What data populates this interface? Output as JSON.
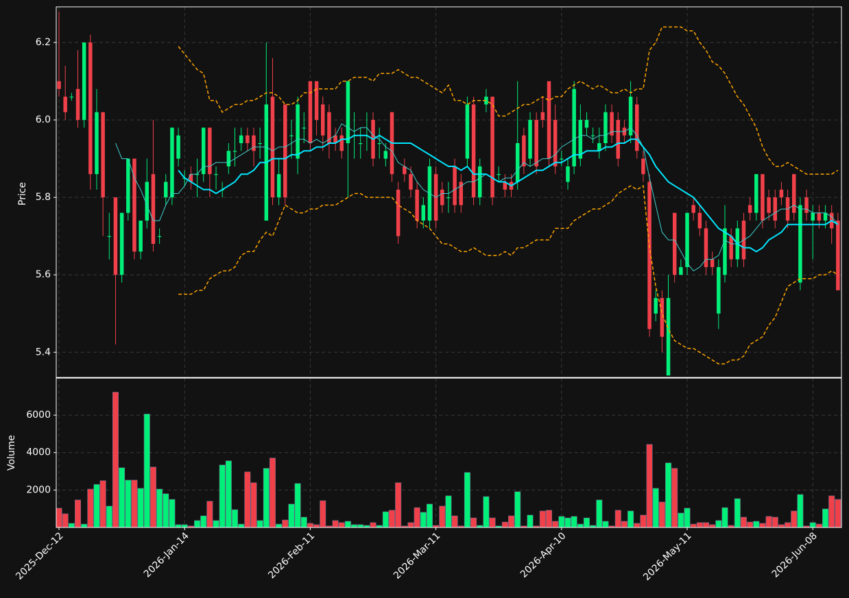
{
  "chart_data": {
    "type": "candlestick",
    "ylabel": "Price",
    "grid": true,
    "up_color": "#00f07a",
    "down_color": "#f0404a",
    "xlim": [
      -0.44,
      124.56
    ],
    "ylim": [
      5.335,
      6.292
    ],
    "yticks": [
      5.4,
      5.6,
      5.8,
      {
        "value": 6,
        "label": "6.0"
      },
      6.2
    ],
    "categories": [
      "2025-Dec-12",
      null,
      null,
      null,
      null,
      null,
      null,
      null,
      null,
      null,
      null,
      null,
      null,
      null,
      null,
      null,
      null,
      null,
      null,
      null,
      "2026-Jan-14",
      null,
      null,
      null,
      null,
      null,
      null,
      null,
      null,
      null,
      null,
      null,
      null,
      null,
      null,
      null,
      null,
      null,
      null,
      null,
      "2026-Feb-11",
      null,
      null,
      null,
      null,
      null,
      null,
      null,
      null,
      null,
      null,
      null,
      null,
      null,
      null,
      null,
      null,
      null,
      null,
      null,
      "2026-Mar-11",
      null,
      null,
      null,
      null,
      null,
      null,
      null,
      null,
      null,
      null,
      null,
      null,
      null,
      null,
      null,
      null,
      null,
      null,
      null,
      "2026-Apr-10",
      null,
      null,
      null,
      null,
      null,
      null,
      null,
      null,
      null,
      null,
      null,
      null,
      null,
      null,
      null,
      null,
      null,
      null,
      null,
      "2026-May-11",
      null,
      null,
      null,
      null,
      null,
      null,
      null,
      null,
      null,
      null,
      null,
      null,
      null,
      null,
      null,
      null,
      null,
      null,
      null,
      "2026-Jun-08",
      null,
      null,
      null,
      null
    ],
    "open": [
      6.1,
      6.06,
      6.06,
      6.08,
      6.0,
      6.2,
      5.86,
      6.02,
      5.7,
      5.8,
      5.6,
      5.76,
      5.9,
      5.66,
      5.74,
      5.86,
      5.7,
      5.8,
      5.8,
      5.9,
      5.85,
      5.86,
      5.86,
      5.86,
      5.98,
      5.86,
      5.82,
      5.88,
      5.92,
      5.94,
      5.96,
      5.96,
      5.94,
      5.74,
      6.06,
      5.8,
      6.04,
      5.96,
      5.9,
      5.98,
      6.1,
      6.1,
      6.04,
      6.02,
      5.96,
      5.96,
      5.94,
      5.96,
      5.94,
      5.96,
      6.0,
      5.94,
      5.9,
      6.02,
      5.82,
      5.88,
      5.86,
      5.82,
      5.74,
      5.74,
      5.86,
      5.82,
      5.8,
      5.88,
      5.84,
      5.9,
      6.04,
      5.8,
      6.04,
      6.06,
      5.86,
      5.84,
      5.84,
      5.84,
      5.96,
      5.9,
      6.0,
      6.02,
      6.1,
      6.0,
      5.9,
      5.84,
      5.88,
      5.9,
      5.98,
      5.96,
      5.92,
      5.94,
      6.02,
      6.0,
      5.98,
      5.96,
      6.04,
      5.9,
      5.84,
      5.5,
      5.54,
      5.34,
      5.76,
      5.6,
      5.62,
      5.78,
      5.76,
      5.72,
      5.64,
      5.5,
      5.6,
      5.7,
      5.64,
      5.74,
      5.78,
      5.76,
      5.86,
      5.8,
      5.8,
      5.82,
      5.8,
      5.86,
      5.58,
      5.8,
      5.74,
      5.76,
      5.74,
      5.76,
      5.74
    ],
    "high": [
      6.28,
      6.14,
      6.07,
      6.18,
      6.2,
      6.22,
      6.08,
      6.02,
      5.76,
      5.8,
      5.76,
      5.9,
      5.9,
      5.74,
      5.9,
      6.0,
      5.72,
      5.86,
      5.98,
      5.98,
      5.87,
      5.88,
      5.9,
      5.98,
      5.98,
      5.88,
      5.84,
      5.94,
      5.98,
      5.98,
      5.98,
      5.98,
      5.98,
      6.2,
      6.16,
      5.9,
      6.04,
      6.0,
      6.06,
      6.02,
      6.1,
      6.1,
      6.06,
      6.04,
      5.98,
      5.98,
      6.1,
      6.02,
      5.98,
      6.02,
      6.02,
      5.98,
      5.94,
      6.02,
      5.84,
      5.9,
      5.88,
      5.84,
      5.8,
      5.9,
      5.88,
      5.84,
      5.84,
      5.9,
      5.86,
      6.06,
      6.06,
      5.9,
      6.08,
      6.06,
      5.88,
      5.86,
      5.86,
      6.1,
      5.98,
      6.02,
      6.02,
      6.06,
      6.1,
      6.04,
      5.92,
      5.9,
      6.1,
      6.04,
      6.02,
      5.98,
      5.98,
      6.04,
      6.04,
      6.02,
      6.0,
      6.1,
      6.06,
      5.92,
      5.86,
      5.56,
      5.56,
      5.6,
      5.76,
      5.64,
      5.76,
      5.8,
      5.78,
      5.74,
      5.66,
      5.64,
      5.78,
      5.72,
      5.74,
      5.76,
      5.8,
      5.86,
      5.86,
      5.82,
      5.82,
      5.84,
      5.82,
      5.86,
      5.8,
      5.82,
      5.78,
      5.78,
      5.78,
      5.78,
      5.76
    ],
    "low": [
      6.06,
      6.0,
      6.05,
      5.98,
      5.98,
      5.82,
      5.82,
      5.7,
      5.64,
      5.42,
      5.58,
      5.74,
      5.64,
      5.64,
      5.72,
      5.66,
      5.68,
      5.78,
      5.78,
      5.88,
      5.83,
      5.82,
      5.8,
      5.84,
      5.8,
      5.82,
      5.8,
      5.86,
      5.88,
      5.92,
      5.92,
      5.88,
      5.9,
      5.74,
      5.78,
      5.78,
      5.78,
      5.9,
      5.86,
      5.94,
      5.92,
      5.96,
      5.92,
      5.9,
      5.92,
      5.9,
      5.8,
      5.9,
      5.9,
      5.92,
      5.88,
      5.9,
      5.88,
      5.84,
      5.68,
      5.84,
      5.8,
      5.72,
      5.72,
      5.72,
      5.72,
      5.76,
      5.76,
      5.76,
      5.76,
      5.88,
      5.78,
      5.78,
      6.02,
      5.78,
      5.84,
      5.8,
      5.8,
      5.82,
      5.86,
      5.88,
      5.86,
      5.98,
      5.88,
      5.86,
      5.88,
      5.82,
      5.86,
      5.88,
      5.96,
      5.94,
      5.9,
      5.92,
      5.94,
      5.88,
      5.94,
      5.94,
      5.9,
      5.84,
      5.44,
      5.48,
      5.4,
      5.34,
      5.58,
      5.6,
      5.6,
      5.74,
      5.7,
      5.6,
      5.6,
      5.46,
      5.58,
      5.62,
      5.62,
      5.62,
      5.74,
      5.74,
      5.72,
      5.74,
      5.72,
      5.78,
      5.72,
      5.74,
      5.56,
      5.74,
      5.64,
      5.72,
      5.72,
      5.68,
      5.56
    ],
    "close": [
      6.08,
      6.02,
      6.06,
      6.0,
      6.2,
      5.86,
      6.02,
      5.8,
      5.7,
      5.6,
      5.76,
      5.9,
      5.66,
      5.74,
      5.84,
      5.68,
      5.7,
      5.84,
      5.98,
      5.96,
      5.85,
      5.84,
      5.86,
      5.98,
      5.86,
      5.86,
      5.82,
      5.92,
      5.92,
      5.96,
      5.94,
      5.92,
      5.94,
      6.04,
      5.8,
      5.86,
      5.8,
      5.96,
      6.04,
      5.98,
      5.94,
      6.0,
      5.96,
      5.94,
      5.94,
      5.92,
      6.1,
      5.96,
      5.94,
      5.96,
      5.9,
      5.94,
      5.92,
      5.86,
      5.7,
      5.86,
      5.82,
      5.74,
      5.78,
      5.88,
      5.74,
      5.78,
      5.8,
      5.78,
      5.78,
      6.04,
      5.8,
      5.88,
      6.06,
      5.8,
      5.86,
      5.82,
      5.82,
      5.94,
      5.88,
      6.0,
      5.88,
      6.0,
      5.9,
      5.88,
      5.9,
      5.88,
      6.08,
      6.0,
      6.0,
      5.96,
      5.94,
      6.02,
      5.96,
      5.9,
      5.96,
      6.06,
      5.92,
      5.86,
      5.46,
      5.54,
      5.44,
      5.54,
      5.6,
      5.62,
      5.76,
      5.76,
      5.72,
      5.62,
      5.62,
      5.62,
      5.72,
      5.64,
      5.72,
      5.64,
      5.76,
      5.86,
      5.74,
      5.76,
      5.74,
      5.8,
      5.74,
      5.76,
      5.78,
      5.76,
      5.76,
      5.74,
      5.76,
      5.72,
      5.56
    ],
    "lines": [
      {
        "color": "#40d0d0",
        "width": 1,
        "values": [
          null,
          null,
          null,
          null,
          null,
          null,
          null,
          null,
          null,
          5.94,
          5.9,
          5.9,
          5.85,
          5.82,
          5.78,
          5.74,
          5.74,
          5.78,
          5.81,
          5.81,
          5.83,
          5.86,
          5.86,
          5.88,
          5.88,
          5.89,
          5.89,
          5.89,
          5.9,
          5.91,
          5.92,
          5.93,
          5.93,
          5.93,
          5.92,
          5.93,
          5.93,
          5.94,
          5.95,
          5.95,
          5.94,
          5.95,
          5.94,
          5.95,
          5.96,
          5.99,
          5.98,
          5.97,
          5.98,
          5.98,
          5.96,
          5.95,
          5.93,
          5.92,
          5.89,
          5.88,
          5.87,
          5.84,
          5.82,
          5.81,
          5.8,
          5.81,
          5.81,
          5.82,
          5.83,
          5.84,
          5.84,
          5.85,
          5.86,
          5.85,
          5.84,
          5.85,
          5.85,
          5.87,
          5.89,
          5.88,
          5.89,
          5.9,
          5.9,
          5.91,
          5.93,
          5.94,
          5.95,
          5.96,
          5.96,
          5.95,
          5.96,
          5.96,
          5.97,
          5.97,
          5.97,
          5.98,
          5.96,
          5.93,
          5.85,
          5.78,
          5.71,
          5.69,
          5.69,
          5.66,
          5.63,
          5.61,
          5.62,
          5.64,
          5.64,
          5.65,
          5.69,
          5.68,
          5.68,
          5.69,
          5.7,
          5.72,
          5.74,
          5.75,
          5.76,
          5.77,
          5.77,
          5.78,
          5.77,
          5.77,
          5.76,
          5.76,
          5.76,
          5.75,
          5.73
        ]
      },
      {
        "color": "#00e8ff",
        "width": 2,
        "values": [
          null,
          null,
          null,
          null,
          null,
          null,
          null,
          null,
          null,
          null,
          null,
          null,
          null,
          null,
          null,
          null,
          null,
          null,
          null,
          5.87,
          5.85,
          5.84,
          5.83,
          5.82,
          5.82,
          5.81,
          5.82,
          5.83,
          5.84,
          5.86,
          5.86,
          5.87,
          5.89,
          5.89,
          5.9,
          5.9,
          5.9,
          5.91,
          5.91,
          5.92,
          5.92,
          5.93,
          5.93,
          5.94,
          5.94,
          5.95,
          5.95,
          5.96,
          5.96,
          5.96,
          5.95,
          5.96,
          5.95,
          5.94,
          5.94,
          5.94,
          5.94,
          5.93,
          5.92,
          5.91,
          5.9,
          5.89,
          5.88,
          5.88,
          5.87,
          5.88,
          5.86,
          5.86,
          5.86,
          5.85,
          5.84,
          5.84,
          5.83,
          5.84,
          5.85,
          5.86,
          5.87,
          5.87,
          5.88,
          5.89,
          5.89,
          5.9,
          5.91,
          5.91,
          5.92,
          5.92,
          5.92,
          5.93,
          5.93,
          5.94,
          5.94,
          5.95,
          5.95,
          5.93,
          5.91,
          5.88,
          5.86,
          5.84,
          5.83,
          5.82,
          5.81,
          5.8,
          5.78,
          5.76,
          5.74,
          5.72,
          5.71,
          5.7,
          5.68,
          5.67,
          5.67,
          5.66,
          5.67,
          5.69,
          5.7,
          5.71,
          5.73,
          5.73,
          5.73,
          5.73,
          5.73,
          5.73,
          5.73,
          5.74,
          5.73
        ]
      },
      {
        "color": "#ffa500",
        "width": 1.5,
        "dashed": true,
        "values": [
          null,
          null,
          null,
          null,
          null,
          null,
          null,
          null,
          null,
          null,
          null,
          null,
          null,
          null,
          null,
          null,
          null,
          null,
          null,
          6.19,
          6.17,
          6.15,
          6.13,
          6.12,
          6.05,
          6.05,
          6.02,
          6.03,
          6.04,
          6.04,
          6.05,
          6.05,
          6.06,
          6.07,
          6.07,
          6.06,
          6.04,
          6.04,
          6.05,
          6.07,
          6.07,
          6.08,
          6.08,
          6.08,
          6.08,
          6.1,
          6.1,
          6.11,
          6.11,
          6.11,
          6.1,
          6.12,
          6.12,
          6.12,
          6.13,
          6.12,
          6.11,
          6.11,
          6.1,
          6.09,
          6.08,
          6.07,
          6.09,
          6.05,
          6.05,
          6.04,
          6.05,
          6.05,
          6.05,
          6.04,
          6.01,
          6.01,
          6.02,
          6.03,
          6.04,
          6.04,
          6.05,
          6.06,
          6.05,
          6.06,
          6.06,
          6.08,
          6.09,
          6.1,
          6.09,
          6.08,
          6.09,
          6.08,
          6.07,
          6.07,
          6.08,
          6.07,
          6.08,
          6.08,
          6.18,
          6.2,
          6.24,
          6.24,
          6.24,
          6.24,
          6.23,
          6.23,
          6.2,
          6.18,
          6.15,
          6.14,
          6.12,
          6.09,
          6.06,
          6.04,
          6.01,
          5.98,
          5.93,
          5.9,
          5.88,
          5.88,
          5.89,
          5.88,
          5.87,
          5.86,
          5.86,
          5.86,
          5.86,
          5.86,
          5.87
        ]
      },
      {
        "color": "#ffa500",
        "width": 1.5,
        "dashed": true,
        "values": [
          null,
          null,
          null,
          null,
          null,
          null,
          null,
          null,
          null,
          null,
          null,
          null,
          null,
          null,
          null,
          null,
          null,
          null,
          null,
          5.55,
          5.55,
          5.55,
          5.56,
          5.56,
          5.59,
          5.6,
          5.61,
          5.61,
          5.62,
          5.65,
          5.66,
          5.66,
          5.69,
          5.71,
          5.7,
          5.74,
          5.78,
          5.77,
          5.76,
          5.76,
          5.77,
          5.77,
          5.78,
          5.78,
          5.78,
          5.79,
          5.8,
          5.81,
          5.81,
          5.8,
          5.8,
          5.8,
          5.8,
          5.8,
          5.78,
          5.77,
          5.76,
          5.74,
          5.73,
          5.72,
          5.7,
          5.68,
          5.68,
          5.67,
          5.66,
          5.66,
          5.67,
          5.66,
          5.65,
          5.65,
          5.65,
          5.66,
          5.65,
          5.67,
          5.67,
          5.68,
          5.69,
          5.69,
          5.69,
          5.72,
          5.72,
          5.72,
          5.74,
          5.75,
          5.76,
          5.77,
          5.77,
          5.78,
          5.79,
          5.81,
          5.82,
          5.83,
          5.82,
          5.83,
          5.67,
          5.57,
          5.5,
          5.46,
          5.43,
          5.42,
          5.41,
          5.41,
          5.4,
          5.39,
          5.38,
          5.37,
          5.37,
          5.38,
          5.38,
          5.39,
          5.42,
          5.43,
          5.44,
          5.47,
          5.49,
          5.53,
          5.57,
          5.58,
          5.59,
          5.59,
          5.59,
          5.6,
          5.6,
          5.61,
          5.6
        ]
      }
    ],
    "volume": {
      "ylabel": "Volume",
      "ylim": [
        0,
        7980
      ],
      "yticks": [
        2000,
        4000,
        6000
      ],
      "values": [
        1030,
        730,
        220,
        1470,
        180,
        2050,
        2300,
        2500,
        1140,
        7230,
        3190,
        2530,
        2530,
        2090,
        6060,
        3230,
        2050,
        1800,
        1500,
        150,
        150,
        80,
        370,
        620,
        1400,
        370,
        3340,
        3560,
        950,
        180,
        2970,
        2390,
        370,
        3160,
        3710,
        180,
        400,
        1250,
        2350,
        550,
        220,
        150,
        1430,
        80,
        370,
        260,
        330,
        150,
        150,
        110,
        260,
        110,
        840,
        920,
        2390,
        80,
        260,
        1060,
        810,
        1250,
        110,
        1140,
        1690,
        620,
        80,
        2940,
        510,
        110,
        1650,
        510,
        80,
        290,
        620,
        1910,
        80,
        660,
        80,
        880,
        920,
        330,
        590,
        510,
        590,
        180,
        510,
        110,
        1470,
        330,
        80,
        920,
        330,
        880,
        220,
        660,
        4440,
        2090,
        1360,
        3450,
        3160,
        770,
        1030,
        180,
        260,
        260,
        150,
        370,
        1060,
        110,
        1540,
        550,
        290,
        330,
        220,
        590,
        550,
        150,
        260,
        880,
        1760,
        80,
        260,
        180,
        990,
        1690,
        1500
      ]
    }
  }
}
